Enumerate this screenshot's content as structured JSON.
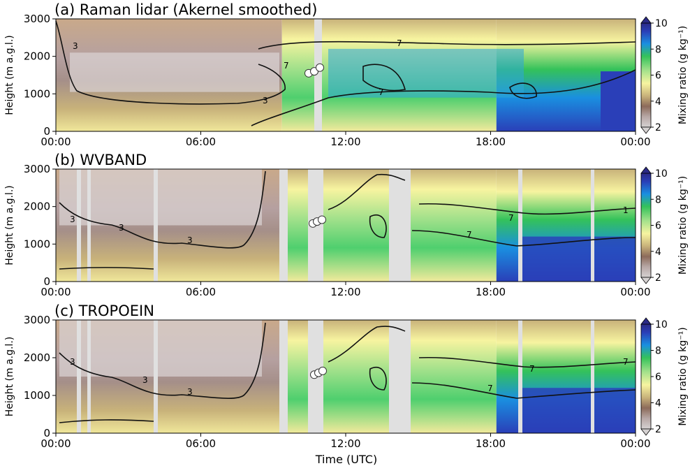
{
  "figure": {
    "xlabel": "Time (UTC)"
  },
  "colorbar": {
    "label": "Mixing ratio (g kg⁻¹)",
    "ticks": [
      "2",
      "4",
      "6",
      "8",
      "10"
    ],
    "colors": [
      "#d6d2d2",
      "#b8a8a6",
      "#8c6b5a",
      "#c8b27a",
      "#f7f4a0",
      "#9fe08a",
      "#34c25a",
      "#1a8fe0",
      "#2a3fb8",
      "#2b2a86"
    ]
  },
  "chart_data": [
    {
      "type": "heatmap",
      "title": "(a) Raman lidar (Akernel smoothed)",
      "ylabel": "Height (m a.g.l.)",
      "xlabel": "",
      "x_ticks": [
        "00:00",
        "06:00",
        "12:00",
        "18:00",
        "00:00"
      ],
      "y_ticks": [
        "0",
        "1000",
        "2000",
        "3000"
      ],
      "ylim": [
        0,
        3000
      ],
      "clim": [
        2,
        10
      ],
      "contour_labels": [
        "3",
        "3",
        "7",
        "7",
        "7"
      ],
      "observation_markers_height_m": [
        1550,
        1600,
        1700
      ]
    },
    {
      "type": "heatmap",
      "title": "(b) WVBAND",
      "ylabel": "Height (m a.g.l.)",
      "xlabel": "",
      "x_ticks": [
        "00:00",
        "06:00",
        "12:00",
        "18:00",
        "00:00"
      ],
      "y_ticks": [
        "0",
        "1000",
        "2000",
        "3000"
      ],
      "ylim": [
        0,
        3000
      ],
      "clim": [
        2,
        10
      ],
      "contour_labels": [
        "3",
        "3",
        "3",
        "7",
        "7",
        "1"
      ],
      "observation_markers_height_m": [
        1550,
        1600,
        1650
      ]
    },
    {
      "type": "heatmap",
      "title": "(c) TROPOEIN",
      "ylabel": "Height (m a.g.l.)",
      "xlabel": "Time (UTC)",
      "x_ticks": [
        "00:00",
        "06:00",
        "12:00",
        "18:00",
        "00:00"
      ],
      "y_ticks": [
        "0",
        "1000",
        "2000",
        "3000"
      ],
      "ylim": [
        0,
        3000
      ],
      "clim": [
        2,
        10
      ],
      "contour_labels": [
        "3",
        "3",
        "3",
        "7",
        "7",
        "7"
      ],
      "observation_markers_height_m": [
        1550,
        1600,
        1650
      ]
    }
  ]
}
